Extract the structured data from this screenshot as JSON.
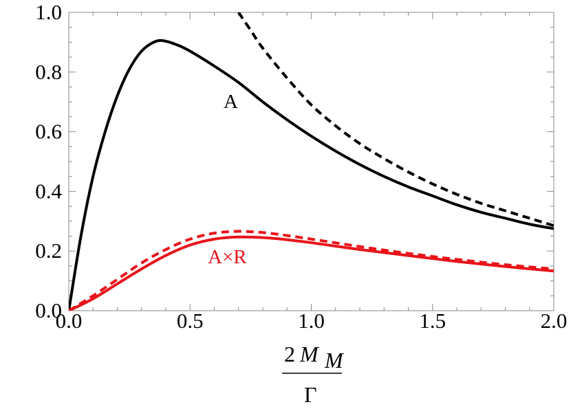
{
  "chart_data": {
    "type": "line",
    "title": "",
    "xlim": [
      0,
      2
    ],
    "ylim": [
      0,
      1
    ],
    "x_ticks": [
      "0.0",
      "0.5",
      "1.0",
      "1.5",
      "2.0"
    ],
    "x_tick_values": [
      0,
      0.5,
      1.0,
      1.5,
      2.0
    ],
    "y_ticks": [
      "0.0",
      "0.2",
      "0.4",
      "0.6",
      "0.8",
      "1.0"
    ],
    "y_tick_values": [
      0,
      0.2,
      0.4,
      0.6,
      0.8,
      1.0
    ],
    "xlabel": {
      "numerator_coeff": "2",
      "numerator_symbol": "M",
      "numerator_subscript": "M",
      "denominator": "Γ"
    },
    "ylabel": "",
    "grid": false,
    "series": [
      {
        "name": "A",
        "label": "A",
        "style": "solid",
        "color": "#000000",
        "points": [
          [
            0,
            0
          ],
          [
            0.05,
            0.25
          ],
          [
            0.1,
            0.45
          ],
          [
            0.15,
            0.6
          ],
          [
            0.2,
            0.72
          ],
          [
            0.25,
            0.81
          ],
          [
            0.3,
            0.87
          ],
          [
            0.35,
            0.9
          ],
          [
            0.39,
            0.905
          ],
          [
            0.45,
            0.89
          ],
          [
            0.5,
            0.87
          ],
          [
            0.6,
            0.82
          ],
          [
            0.7,
            0.765
          ],
          [
            0.8,
            0.7
          ],
          [
            0.9,
            0.64
          ],
          [
            1.0,
            0.585
          ],
          [
            1.1,
            0.535
          ],
          [
            1.2,
            0.49
          ],
          [
            1.3,
            0.45
          ],
          [
            1.4,
            0.415
          ],
          [
            1.5,
            0.385
          ],
          [
            1.6,
            0.355
          ],
          [
            1.7,
            0.33
          ],
          [
            1.8,
            0.31
          ],
          [
            1.9,
            0.29
          ],
          [
            2.0,
            0.275
          ]
        ]
      },
      {
        "name": "A (asymptote)",
        "label": "",
        "style": "dashed",
        "color": "#000000",
        "points": [
          [
            0.7,
            1.0
          ],
          [
            0.75,
            0.94
          ],
          [
            0.8,
            0.88
          ],
          [
            0.9,
            0.78
          ],
          [
            1.0,
            0.69
          ],
          [
            1.1,
            0.62
          ],
          [
            1.2,
            0.56
          ],
          [
            1.3,
            0.51
          ],
          [
            1.4,
            0.465
          ],
          [
            1.5,
            0.425
          ],
          [
            1.6,
            0.39
          ],
          [
            1.7,
            0.36
          ],
          [
            1.8,
            0.335
          ],
          [
            1.9,
            0.31
          ],
          [
            2.0,
            0.285
          ]
        ]
      },
      {
        "name": "A×R",
        "label": "A×R",
        "style": "solid",
        "color": "#e8141a",
        "points": [
          [
            0,
            0
          ],
          [
            0.1,
            0.04
          ],
          [
            0.2,
            0.09
          ],
          [
            0.3,
            0.14
          ],
          [
            0.4,
            0.185
          ],
          [
            0.5,
            0.22
          ],
          [
            0.6,
            0.24
          ],
          [
            0.7,
            0.247
          ],
          [
            0.8,
            0.245
          ],
          [
            0.9,
            0.238
          ],
          [
            1.0,
            0.228
          ],
          [
            1.2,
            0.205
          ],
          [
            1.4,
            0.185
          ],
          [
            1.6,
            0.165
          ],
          [
            1.8,
            0.148
          ],
          [
            2.0,
            0.133
          ]
        ]
      },
      {
        "name": "A×R (asymptote)",
        "label": "",
        "style": "dashed",
        "color": "#e8141a",
        "points": [
          [
            0,
            0
          ],
          [
            0.1,
            0.05
          ],
          [
            0.2,
            0.105
          ],
          [
            0.3,
            0.16
          ],
          [
            0.4,
            0.205
          ],
          [
            0.5,
            0.24
          ],
          [
            0.6,
            0.26
          ],
          [
            0.7,
            0.266
          ],
          [
            0.8,
            0.262
          ],
          [
            0.9,
            0.252
          ],
          [
            1.0,
            0.24
          ],
          [
            1.2,
            0.215
          ],
          [
            1.4,
            0.192
          ],
          [
            1.6,
            0.172
          ],
          [
            1.8,
            0.154
          ],
          [
            2.0,
            0.14
          ]
        ]
      }
    ]
  }
}
